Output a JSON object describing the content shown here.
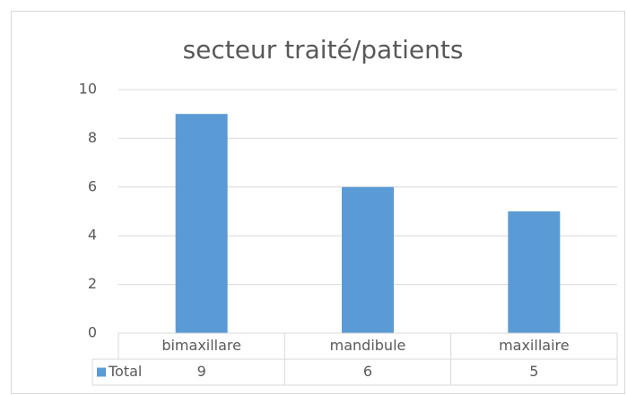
{
  "chart_data": {
    "type": "bar",
    "title": "secteur traité/patients",
    "categories": [
      "bimaxillare",
      "mandibule",
      "maxillaire"
    ],
    "series": [
      {
        "name": "Total",
        "color": "#5b9bd5",
        "values": [
          9,
          6,
          5
        ]
      }
    ],
    "ylim": [
      0,
      10
    ],
    "yticks": [
      0,
      2,
      4,
      6,
      8,
      10
    ],
    "grid": true
  }
}
